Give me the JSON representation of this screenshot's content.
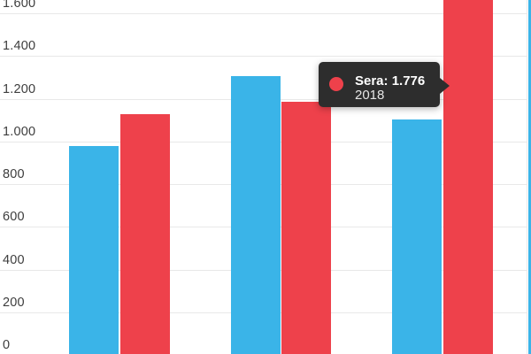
{
  "colors": {
    "series_blue": "#3ab4e8",
    "series_red": "#ee414b",
    "gridline": "#e8e8e8",
    "axis_label": "#3d3d3d",
    "tooltip_bg": "#2d2d2d"
  },
  "chart_data": {
    "type": "bar",
    "title": "",
    "x_axis_labels_visible": false,
    "categories": [
      null,
      null,
      "2018",
      null
    ],
    "series": [
      {
        "name": null,
        "color": "#3ab4e8",
        "values": [
          975,
          1300,
          1100
        ],
        "values_estimated": true
      },
      {
        "name": "Sera",
        "color": "#ee414b",
        "values": [
          1125,
          1180,
          1776
        ],
        "values_estimated": "first two estimated from pixels; 1776 exact from tooltip; third bar cropped above top edge"
      }
    ],
    "y_axis": {
      "ticks": [
        {
          "value": 1600,
          "label": "1.600"
        },
        {
          "value": 1400,
          "label": "1.400"
        },
        {
          "value": 1200,
          "label": "1.200"
        },
        {
          "value": 1000,
          "label": "1.000"
        },
        {
          "value": 800,
          "label": "800"
        },
        {
          "value": 600,
          "label": "600"
        },
        {
          "value": 400,
          "label": "400"
        },
        {
          "value": 200,
          "label": "200"
        },
        {
          "value": 0,
          "label": "0"
        }
      ],
      "visible_range": [
        0,
        1660
      ],
      "thousands_separator": "."
    },
    "grid": "horizontal lines on, right plot border line on",
    "legend_position": "not visible (chart cropped)",
    "partial_bar_right_edge": {
      "color": "#3ab4e8",
      "note": "sliver of a further blue bar cropped at right edge, extends beyond top of view"
    }
  },
  "tooltip": {
    "marker_color": "#ee414b",
    "title": "Sera: 1.776",
    "subtitle": "2018"
  }
}
